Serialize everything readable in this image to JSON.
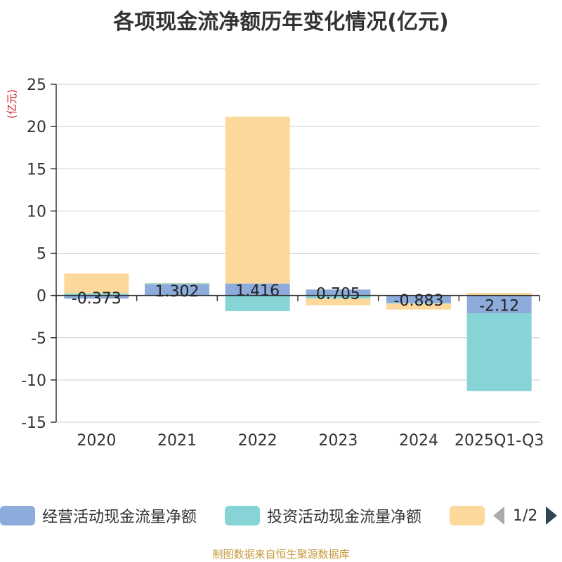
{
  "chart_data": {
    "type": "bar",
    "stacked": true,
    "title": "各项现金流净额历年变化情况(亿元)",
    "ylabel": "(亿元)",
    "ylim": [
      -15,
      25
    ],
    "yticks": [
      25,
      20,
      15,
      10,
      5,
      0,
      -5,
      -10,
      -15
    ],
    "categories": [
      "2020",
      "2021",
      "2022",
      "2023",
      "2024",
      "2025Q1-Q3"
    ],
    "series": [
      {
        "name": "经营活动现金流量净额",
        "color": "#8eacdb",
        "values": [
          -0.373,
          1.302,
          1.416,
          0.705,
          -0.883,
          -2.12
        ],
        "labels": [
          "-0.373",
          "1.302",
          "1.416",
          "0.705",
          "-0.883",
          "-2.12"
        ]
      },
      {
        "name": "投资活动现金流量净额",
        "color": "#86d4d6",
        "values": [
          0.25,
          0.12,
          -1.85,
          -0.35,
          -0.08,
          -9.2
        ]
      },
      {
        "name": "",
        "color": "#fdd89b",
        "values": [
          2.35,
          0.05,
          19.75,
          -0.8,
          -0.7,
          0.3
        ]
      }
    ],
    "legend": {
      "position": "bottom",
      "page": "1/2"
    }
  },
  "footer": "制图数据来自恒生聚源数据库"
}
